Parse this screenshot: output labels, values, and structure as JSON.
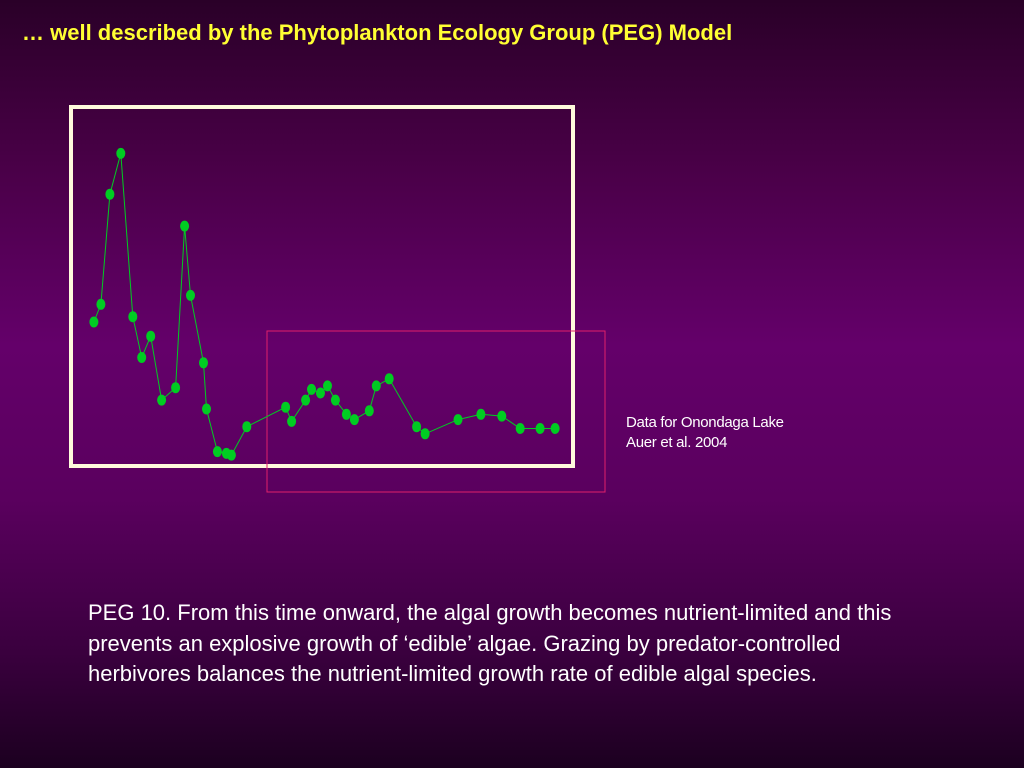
{
  "slide": {
    "title": "… well described by the Phytoplankton Ecology Group (PEG) Model",
    "source_line1": "Data for Onondaga Lake",
    "source_line2": "Auer et al. 2004",
    "caption": "PEG 10. From this time onward, the algal growth becomes nutrient-limited and this prevents an explosive growth of ‘edible’ algae.  Grazing by predator-controlled herbivores balances the nutrient-limited growth rate of edible algal species."
  },
  "colors": {
    "title": "#ffff33",
    "frame": "#fffadc",
    "highlight": "#e0206a",
    "series": "#00cc22"
  },
  "chart_data": {
    "type": "line",
    "title": "",
    "xlabel": "",
    "ylabel": "",
    "xlim": [
      0,
      100
    ],
    "ylim": [
      0,
      100
    ],
    "grid": false,
    "series": [
      {
        "x": [
          4.2,
          5.6,
          7.4,
          9.6,
          12.0,
          13.8,
          15.6,
          17.8,
          20.6,
          22.4,
          23.6,
          26.2,
          26.8,
          29.0,
          30.8,
          31.8,
          34.9,
          42.7,
          43.9,
          46.7,
          47.9,
          49.7,
          51.1,
          52.7,
          54.9,
          56.5,
          59.5,
          60.9,
          63.5,
          69.0,
          70.7,
          77.3,
          81.9,
          86.1,
          89.8,
          93.8,
          96.8
        ],
        "y": [
          40.0,
          45.0,
          76.0,
          87.5,
          41.5,
          30.0,
          36.0,
          18.0,
          21.5,
          67.0,
          47.5,
          28.5,
          15.5,
          3.5,
          3.0,
          2.5,
          10.5,
          16.0,
          12.0,
          18.0,
          21.0,
          20.0,
          22.0,
          18.0,
          14.0,
          12.5,
          15.0,
          22.0,
          24.0,
          10.5,
          8.5,
          12.5,
          14.0,
          13.5,
          10.0,
          10.0,
          10.0
        ]
      }
    ]
  }
}
